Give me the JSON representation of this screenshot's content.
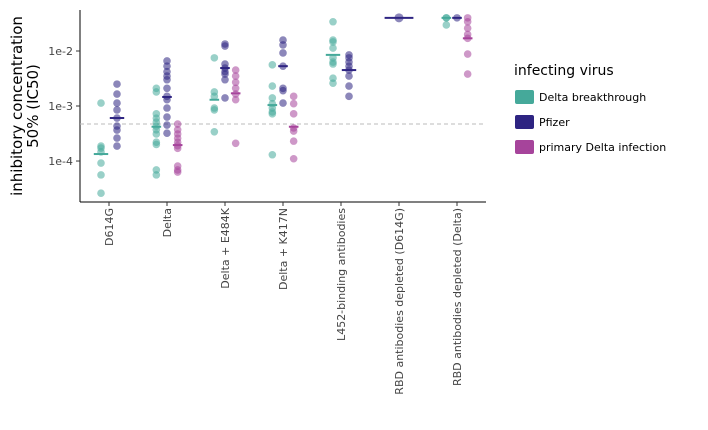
{
  "chart_data": {
    "type": "dot",
    "ylabel": [
      "inhibitory concentration",
      "50% (IC50)"
    ],
    "categories": [
      "D614G",
      "Delta",
      "Delta + E484K",
      "Delta + K417N",
      "L452-binding antibodies",
      "RBD antibodies depleted (D614G)",
      "RBD antibodies depleted (Delta)"
    ],
    "yscale": "log",
    "ylim": [
      1.8e-05,
      0.0556
    ],
    "yticks": [
      {
        "value": 0.01,
        "label": "1e-2"
      },
      {
        "value": 0.001,
        "label": "1e-3"
      },
      {
        "value": 0.0001,
        "label": "1e-4"
      }
    ],
    "hline": 0.00047,
    "legend_title": "infecting virus",
    "series": [
      {
        "name": "Delta breakthrough",
        "color": "#45a99a",
        "values": [
          [
            0.00113,
            0.000187,
            0.000172,
            0.000146,
            9.2e-05,
            5.6e-05,
            2.6e-05
          ],
          [
            0.0021,
            0.0018,
            0.00072,
            0.0006,
            0.00051,
            0.00043,
            0.00037,
            0.00031,
            0.00022,
            0.0002,
            6.9e-05,
            5.6e-05
          ],
          [
            0.0075,
            0.0018,
            0.0015,
            0.00092,
            0.00085,
            0.00034
          ],
          [
            0.0056,
            0.0023,
            0.0014,
            0.0011,
            0.00092,
            0.00078,
            0.00072,
            0.00013
          ],
          [
            0.034,
            0.0158,
            0.0146,
            0.0113,
            0.0075,
            0.0063,
            0.0058,
            0.0032,
            0.0026
          ],
          [],
          [
            0.04,
            0.04,
            0.0297
          ]
        ],
        "medians": [
          0.000134,
          0.00042,
          0.0013,
          0.00104,
          0.0085,
          null,
          0.04
        ]
      },
      {
        "name": "Pfizer",
        "color": "#2e2482",
        "values": [
          [
            0.0025,
            0.00165,
            0.00113,
            0.00085,
            0.000605,
            0.000433,
            0.000366,
            0.000262,
            0.000187
          ],
          [
            0.0066,
            0.0053,
            0.0042,
            0.0035,
            0.003,
            0.0021,
            0.0015,
            0.0013,
            0.00092,
            0.00063,
            0.00045,
            0.00032
          ],
          [
            0.0134,
            0.0123,
            0.0058,
            0.0049,
            0.0042,
            0.0038,
            0.003,
            0.0014
          ],
          [
            0.0158,
            0.0129,
            0.0092,
            0.0053,
            0.0021,
            0.0019,
            0.00113
          ],
          [
            0.0085,
            0.0075,
            0.0063,
            0.0053,
            0.0045,
            0.0035,
            0.0023,
            0.0015
          ],
          [
            0.04
          ],
          [
            0.04
          ]
        ],
        "medians": [
          0.000605,
          0.00146,
          0.0049,
          0.0053,
          0.0045,
          0.04,
          0.04
        ]
      },
      {
        "name": "primary Delta infection",
        "color": "#a6449b",
        "values": [
          [],
          [
            0.00047,
            0.00037,
            0.00031,
            0.00026,
            0.00022,
            0.00019,
            0.00017,
            8.1e-05,
            6.9e-05,
            6.3e-05
          ],
          [
            0.0045,
            0.0035,
            0.0027,
            0.0021,
            0.00165,
            0.0013,
            0.00021
          ],
          [
            0.0015,
            0.0011,
            0.00072,
            0.0004,
            0.00035,
            0.00023,
            0.00011
          ],
          [],
          [],
          [
            0.04,
            0.034,
            0.026,
            0.02,
            0.017,
            0.0088,
            0.0038
          ]
        ],
        "medians": [
          null,
          0.000195,
          0.0017,
          0.00042,
          null,
          null,
          0.017
        ]
      }
    ]
  }
}
